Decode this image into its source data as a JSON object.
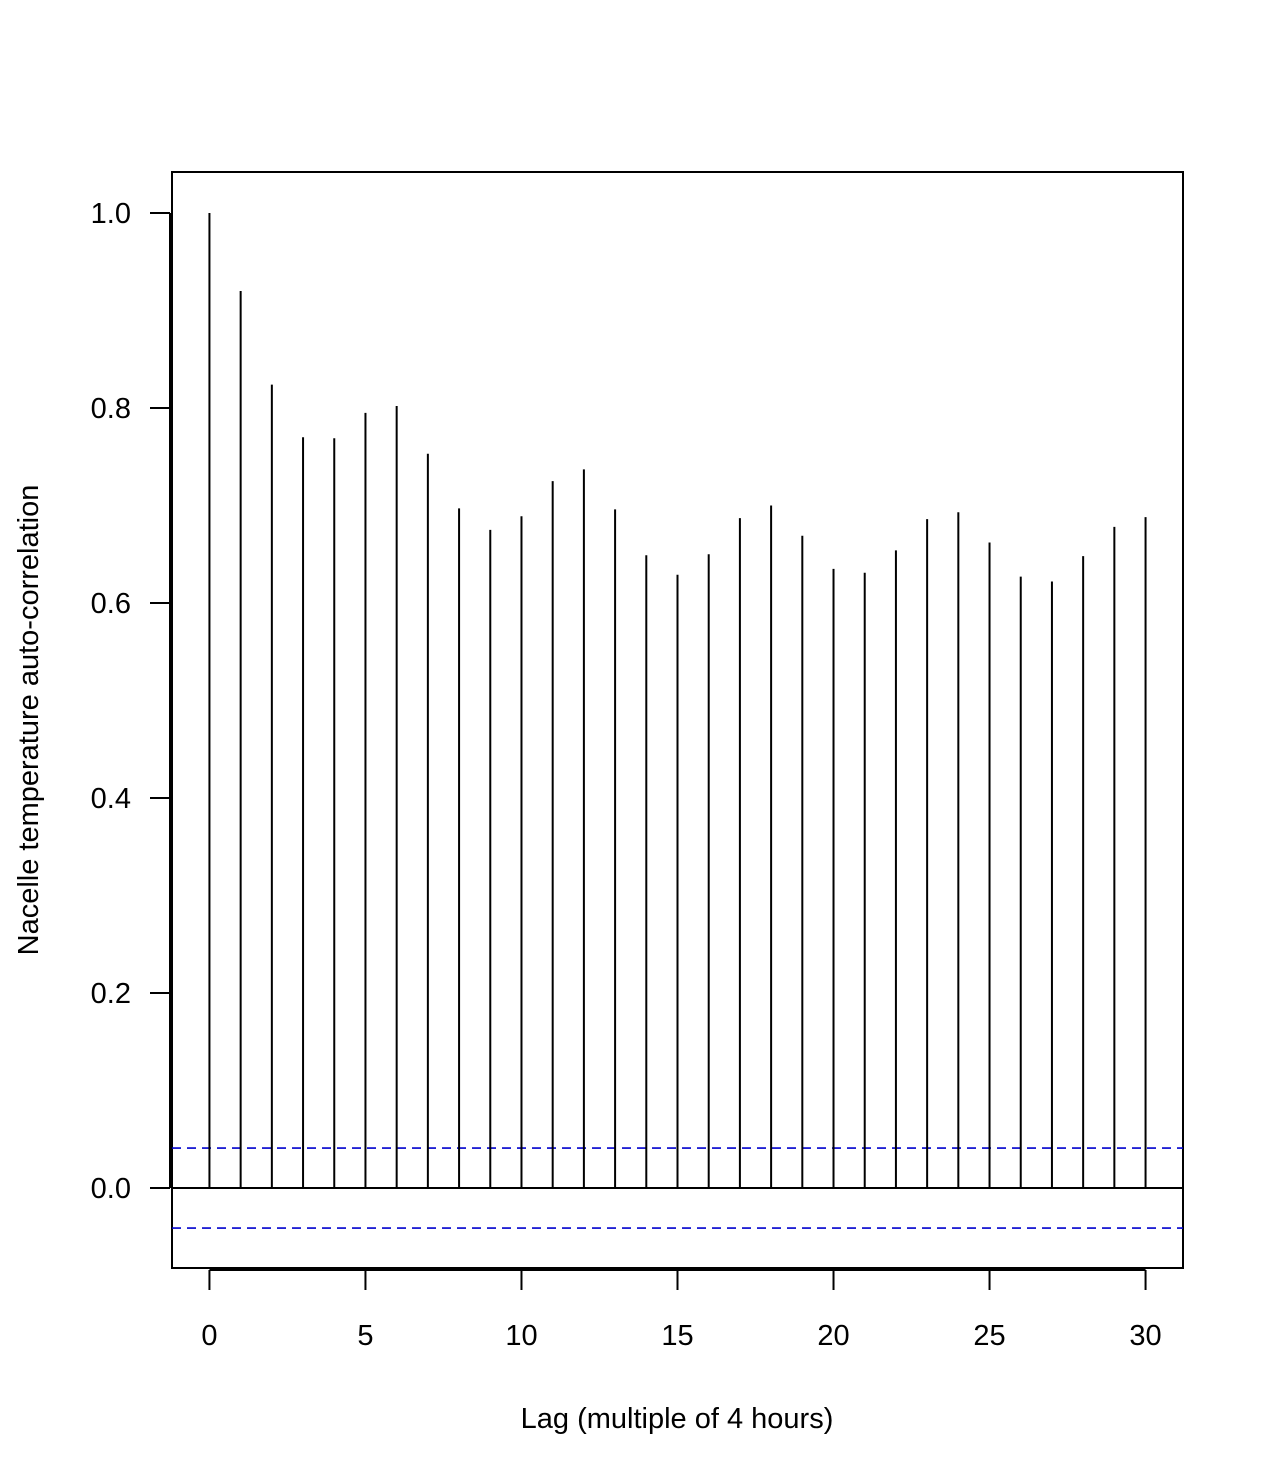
{
  "chart_data": {
    "type": "bar",
    "title": "",
    "xlabel": "Lag (multiple of 4 hours)",
    "ylabel": "Nacelle temperature auto-correlation",
    "xlim": [
      -1.2,
      31.2
    ],
    "ylim": [
      -0.082,
      1.042
    ],
    "x_ticks": [
      0,
      5,
      10,
      15,
      20,
      25,
      30
    ],
    "x_tick_labels": [
      "0",
      "5",
      "10",
      "15",
      "20",
      "25",
      "30"
    ],
    "y_ticks": [
      0.0,
      0.2,
      0.4,
      0.6,
      0.8,
      1.0
    ],
    "y_tick_labels": [
      "0.0",
      "0.2",
      "0.4",
      "0.6",
      "0.8",
      "1.0"
    ],
    "lags": [
      0,
      1,
      2,
      3,
      4,
      5,
      6,
      7,
      8,
      9,
      10,
      11,
      12,
      13,
      14,
      15,
      16,
      17,
      18,
      19,
      20,
      21,
      22,
      23,
      24,
      25,
      26,
      27,
      28,
      29,
      30
    ],
    "values": [
      1.0,
      0.92,
      0.824,
      0.77,
      0.769,
      0.795,
      0.802,
      0.753,
      0.697,
      0.675,
      0.689,
      0.725,
      0.737,
      0.696,
      0.649,
      0.629,
      0.65,
      0.687,
      0.7,
      0.669,
      0.635,
      0.631,
      0.654,
      0.686,
      0.693,
      0.662,
      0.627,
      0.622,
      0.648,
      0.678,
      0.688
    ],
    "confidence_bounds": [
      0.041,
      -0.041
    ],
    "confidence_color": "#0000CD",
    "bar_color": "#000000",
    "grid": false,
    "legend": "none"
  }
}
